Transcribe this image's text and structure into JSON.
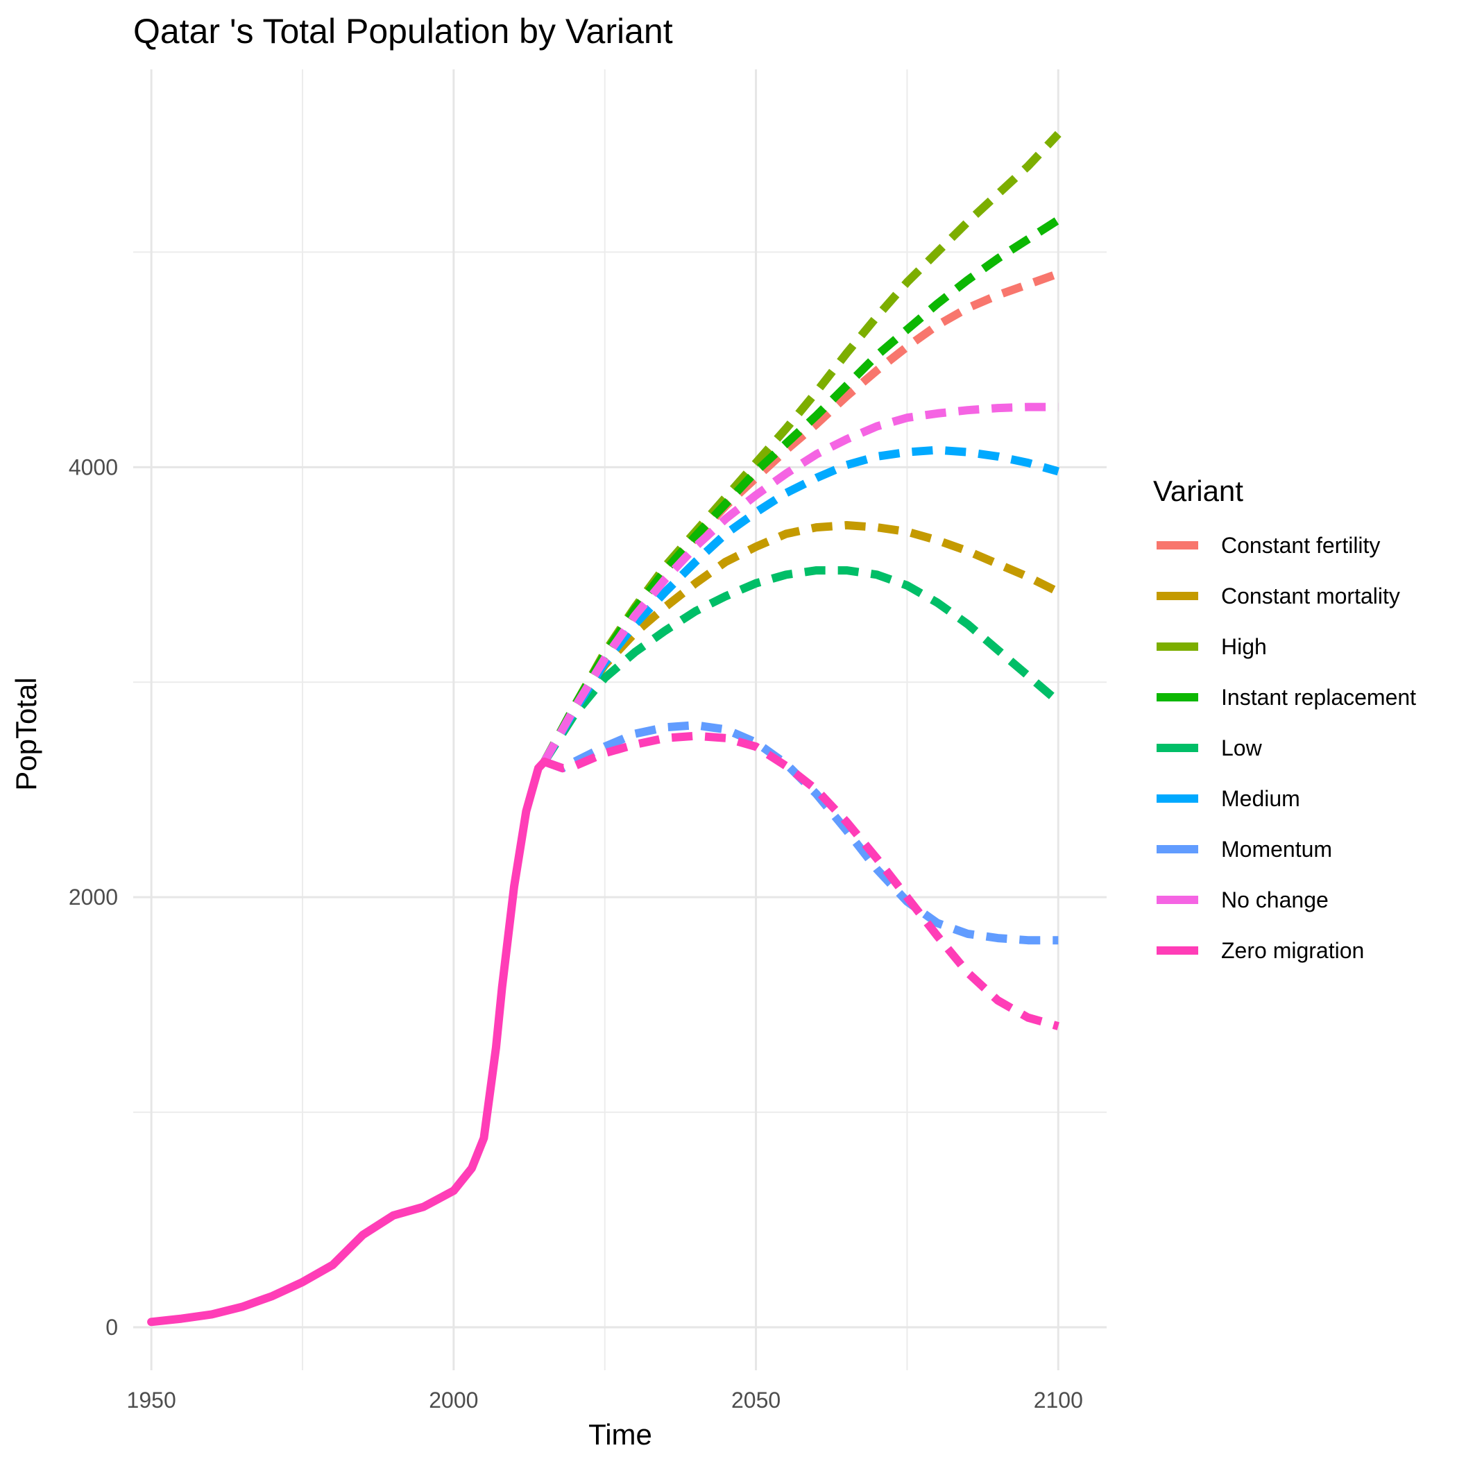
{
  "chart_data": {
    "type": "line",
    "title": "Qatar 's Total Population by Variant",
    "xlabel": "Time",
    "ylabel": "PopTotal",
    "xlim": [
      1947,
      2108
    ],
    "ylim": [
      -200,
      5850
    ],
    "x_ticks": [
      1950,
      2000,
      2050,
      2100
    ],
    "x_tick_labels": [
      "1950",
      "2000",
      "2050",
      "2100"
    ],
    "y_ticks": [
      0,
      2000,
      4000
    ],
    "y_tick_labels": [
      "0",
      "2000",
      "4000"
    ],
    "x_minor": [
      1975,
      2025,
      2075
    ],
    "y_minor": [
      1000,
      3000,
      5000
    ],
    "grid": true,
    "legend": {
      "title": "Variant",
      "position": "right"
    },
    "historical": {
      "x": [
        1950,
        1955,
        1960,
        1965,
        1970,
        1975,
        1980,
        1985,
        1990,
        1995,
        2000,
        2003,
        2005,
        2007,
        2008,
        2010,
        2012,
        2014,
        2015
      ],
      "y": [
        25,
        40,
        60,
        95,
        145,
        210,
        290,
        430,
        520,
        560,
        635,
        740,
        880,
        1300,
        1580,
        2050,
        2400,
        2600,
        2630
      ]
    },
    "series": [
      {
        "name": "Constant fertility",
        "color": "#F8766D",
        "x": [
          2015,
          2020,
          2025,
          2030,
          2035,
          2040,
          2045,
          2050,
          2055,
          2060,
          2065,
          2070,
          2075,
          2080,
          2085,
          2090,
          2095,
          2100
        ],
        "y": [
          2630,
          2880,
          3120,
          3330,
          3520,
          3670,
          3820,
          3950,
          4080,
          4200,
          4330,
          4450,
          4560,
          4660,
          4740,
          4800,
          4850,
          4900
        ]
      },
      {
        "name": "Constant mortality",
        "color": "#C49A00",
        "x": [
          2015,
          2020,
          2025,
          2030,
          2035,
          2040,
          2045,
          2050,
          2055,
          2060,
          2065,
          2070,
          2075,
          2080,
          2085,
          2090,
          2095,
          2100
        ],
        "y": [
          2630,
          2880,
          3080,
          3230,
          3350,
          3460,
          3560,
          3630,
          3690,
          3720,
          3730,
          3720,
          3700,
          3660,
          3610,
          3550,
          3490,
          3420
        ]
      },
      {
        "name": "High",
        "color": "#7CAE00",
        "x": [
          2015,
          2020,
          2025,
          2030,
          2035,
          2040,
          2045,
          2050,
          2055,
          2060,
          2065,
          2070,
          2075,
          2080,
          2085,
          2090,
          2095,
          2100
        ],
        "y": [
          2630,
          2890,
          3140,
          3350,
          3540,
          3700,
          3860,
          4020,
          4180,
          4350,
          4530,
          4700,
          4860,
          5000,
          5140,
          5270,
          5400,
          5550
        ]
      },
      {
        "name": "Instant replacement",
        "color": "#0CB702",
        "x": [
          2015,
          2020,
          2025,
          2030,
          2035,
          2040,
          2045,
          2050,
          2055,
          2060,
          2065,
          2070,
          2075,
          2080,
          2085,
          2090,
          2095,
          2100
        ],
        "y": [
          2630,
          2890,
          3130,
          3340,
          3520,
          3680,
          3830,
          3980,
          4110,
          4240,
          4380,
          4520,
          4640,
          4760,
          4870,
          4970,
          5060,
          5150
        ]
      },
      {
        "name": "Low",
        "color": "#00BE67",
        "x": [
          2015,
          2020,
          2025,
          2030,
          2035,
          2040,
          2045,
          2050,
          2055,
          2060,
          2065,
          2070,
          2075,
          2080,
          2085,
          2090,
          2095,
          2100
        ],
        "y": [
          2630,
          2850,
          3020,
          3140,
          3240,
          3330,
          3400,
          3460,
          3500,
          3520,
          3520,
          3500,
          3450,
          3370,
          3270,
          3150,
          3030,
          2910
        ]
      },
      {
        "name": "Medium",
        "color": "#00A9FF",
        "x": [
          2015,
          2020,
          2025,
          2030,
          2035,
          2040,
          2045,
          2050,
          2055,
          2060,
          2065,
          2070,
          2075,
          2080,
          2085,
          2090,
          2095,
          2100
        ],
        "y": [
          2630,
          2870,
          3090,
          3270,
          3420,
          3560,
          3690,
          3790,
          3880,
          3950,
          4010,
          4050,
          4070,
          4080,
          4070,
          4050,
          4020,
          3980
        ]
      },
      {
        "name": "Momentum",
        "color": "#619CFF",
        "x": [
          2015,
          2018,
          2020,
          2025,
          2030,
          2035,
          2040,
          2045,
          2050,
          2055,
          2060,
          2065,
          2070,
          2075,
          2080,
          2085,
          2090,
          2095,
          2100
        ],
        "y": [
          2630,
          2600,
          2630,
          2700,
          2760,
          2790,
          2800,
          2780,
          2720,
          2620,
          2480,
          2310,
          2130,
          1980,
          1880,
          1830,
          1810,
          1800,
          1800
        ]
      },
      {
        "name": "No change",
        "color": "#F564E3",
        "x": [
          2015,
          2020,
          2025,
          2030,
          2035,
          2040,
          2045,
          2050,
          2055,
          2060,
          2065,
          2070,
          2075,
          2080,
          2085,
          2090,
          2095,
          2100
        ],
        "y": [
          2630,
          2880,
          3110,
          3310,
          3480,
          3630,
          3760,
          3870,
          3970,
          4060,
          4130,
          4190,
          4230,
          4250,
          4265,
          4275,
          4280,
          4280
        ]
      },
      {
        "name": "Zero migration",
        "color": "#FF3DB7",
        "x": [
          2015,
          2018,
          2020,
          2025,
          2030,
          2035,
          2040,
          2045,
          2050,
          2055,
          2060,
          2065,
          2070,
          2075,
          2080,
          2085,
          2090,
          2095,
          2100
        ],
        "y": [
          2630,
          2600,
          2610,
          2670,
          2710,
          2740,
          2750,
          2740,
          2700,
          2610,
          2500,
          2350,
          2180,
          2000,
          1820,
          1650,
          1520,
          1440,
          1400
        ]
      }
    ]
  }
}
